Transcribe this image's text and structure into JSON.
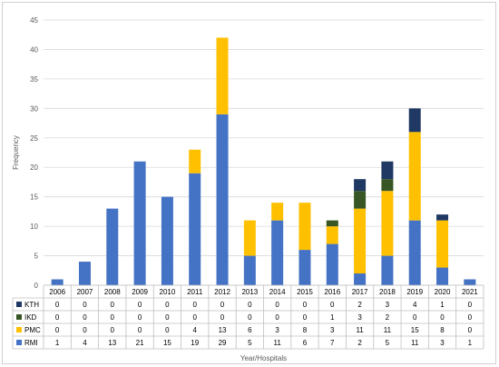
{
  "chart_data": {
    "type": "bar",
    "stacked": true,
    "title": "",
    "xlabel": "Year/Hospitals",
    "ylabel": "Frequency",
    "ylim": [
      0,
      45
    ],
    "yticks": [
      0,
      5,
      10,
      15,
      20,
      25,
      30,
      35,
      40,
      45
    ],
    "grid": true,
    "legend_placement": "table-left",
    "categories": [
      "2006",
      "2007",
      "2008",
      "2009",
      "2010",
      "2011",
      "2012",
      "2013",
      "2014",
      "2015",
      "2016",
      "2017",
      "2018",
      "2019",
      "2020",
      "2021"
    ],
    "series": [
      {
        "name": "RMI",
        "color": "#4472C4",
        "values": [
          1,
          4,
          13,
          21,
          15,
          19,
          29,
          5,
          11,
          6,
          7,
          2,
          5,
          11,
          3,
          1
        ]
      },
      {
        "name": "PMC",
        "color": "#FFC000",
        "values": [
          0,
          0,
          0,
          0,
          0,
          4,
          13,
          6,
          3,
          8,
          3,
          11,
          11,
          15,
          8,
          0
        ]
      },
      {
        "name": "IKD",
        "color": "#375623",
        "values": [
          0,
          0,
          0,
          0,
          0,
          0,
          0,
          0,
          0,
          0,
          1,
          3,
          2,
          0,
          0,
          0
        ]
      },
      {
        "name": "KTH",
        "color": "#1F3864",
        "values": [
          0,
          0,
          0,
          0,
          0,
          0,
          0,
          0,
          0,
          0,
          0,
          2,
          3,
          4,
          1,
          0
        ]
      }
    ],
    "table_row_order": [
      "KTH",
      "IKD",
      "PMC",
      "RMI"
    ]
  }
}
